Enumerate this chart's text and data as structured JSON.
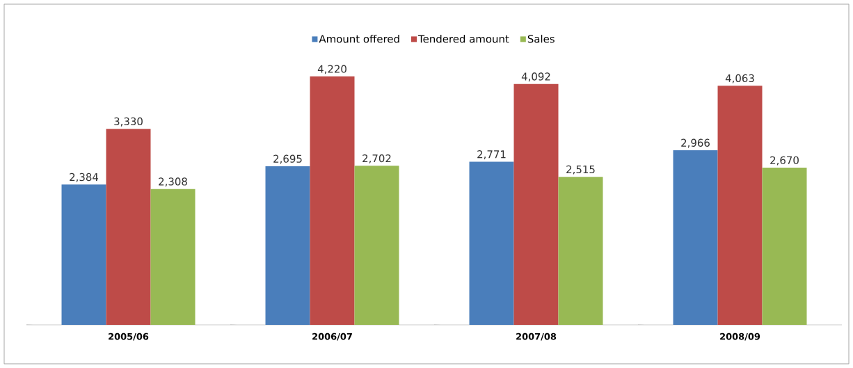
{
  "chart_data": {
    "type": "bar",
    "categories": [
      "2005/06",
      "2006/07",
      "2007/08",
      "2008/09"
    ],
    "series": [
      {
        "name": "Amount offered",
        "color": "#4a7ebb",
        "values": [
          2384,
          2695,
          2771,
          2966
        ],
        "value_labels": [
          "2,384",
          "2,695",
          "2,771",
          "2,966"
        ]
      },
      {
        "name": "Tendered amount",
        "color": "#be4b48",
        "values": [
          3330,
          4220,
          4092,
          4063
        ],
        "value_labels": [
          "3,330",
          "4,220",
          "4,092",
          "4,063"
        ]
      },
      {
        "name": "Sales",
        "color": "#98b954",
        "values": [
          2308,
          2702,
          2515,
          2670
        ],
        "value_labels": [
          "2,308",
          "2,702",
          "2,515",
          "2,670"
        ]
      }
    ],
    "legend": "top"
  }
}
